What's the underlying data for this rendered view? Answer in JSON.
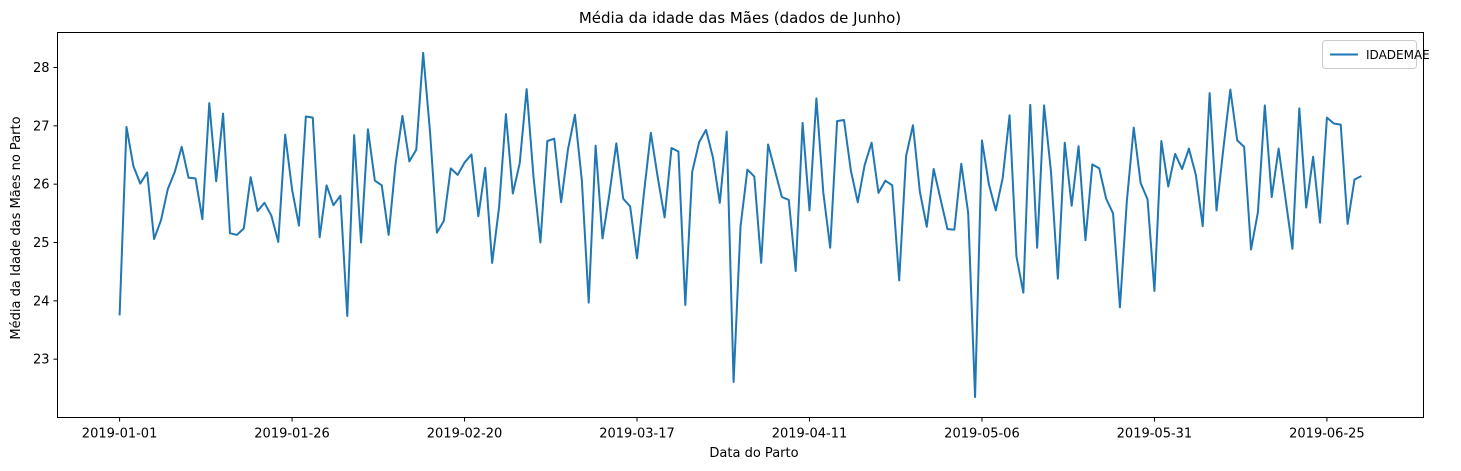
{
  "chart_data": {
    "type": "line",
    "title": "Média da idade das Mães (dados de Junho)",
    "xlabel": "Data do Parto",
    "ylabel": "Média da Idade das Mães no Parto",
    "x_start": "2019-01-01",
    "x_end": "2019-06-30",
    "xlim": [
      "2018-12-23",
      "2019-07-09"
    ],
    "ylim": [
      22.0,
      28.6
    ],
    "xticks": [
      "2019-01-01",
      "2019-01-26",
      "2019-02-20",
      "2019-03-17",
      "2019-04-11",
      "2019-05-06",
      "2019-05-31",
      "2019-06-25"
    ],
    "yticks": [
      23,
      24,
      25,
      26,
      27,
      28
    ],
    "legend": {
      "position": "upper-right",
      "entries": [
        "IDADEMAE"
      ]
    },
    "grid": false,
    "series": [
      {
        "name": "IDADEMAE",
        "color": "#1f77b4",
        "values": [
          23.75,
          26.98,
          26.31,
          26.01,
          26.2,
          25.06,
          25.38,
          25.92,
          26.21,
          26.64,
          26.11,
          26.1,
          25.4,
          27.39,
          26.05,
          27.21,
          25.16,
          25.13,
          25.24,
          26.12,
          25.54,
          25.68,
          25.46,
          25.01,
          26.85,
          25.91,
          25.29,
          27.16,
          27.14,
          25.09,
          25.98,
          25.64,
          25.8,
          23.74,
          26.84,
          25.0,
          26.94,
          26.06,
          25.98,
          25.13,
          26.35,
          27.17,
          26.39,
          26.59,
          28.25,
          26.89,
          25.17,
          25.37,
          26.27,
          26.16,
          26.37,
          26.51,
          25.45,
          26.28,
          24.65,
          25.6,
          27.2,
          25.84,
          26.36,
          27.63,
          26.12,
          25.0,
          26.74,
          26.78,
          25.69,
          26.6,
          27.19,
          26.07,
          23.97,
          26.66,
          25.07,
          25.83,
          26.7,
          25.75,
          25.62,
          24.73,
          25.84,
          26.88,
          26.12,
          25.43,
          26.62,
          26.56,
          23.93,
          26.21,
          26.72,
          26.93,
          26.46,
          25.68,
          26.9,
          22.61,
          25.27,
          26.25,
          26.13,
          24.65,
          26.68,
          26.23,
          25.78,
          25.73,
          24.51,
          27.05,
          25.55,
          27.47,
          25.86,
          24.91,
          27.08,
          27.1,
          26.23,
          25.69,
          26.33,
          26.71,
          25.85,
          26.06,
          25.98,
          24.35,
          26.48,
          27.01,
          25.87,
          25.27,
          26.26,
          25.74,
          25.23,
          25.22,
          26.35,
          25.51,
          22.35,
          26.75,
          26.0,
          25.55,
          26.1,
          27.18,
          24.76,
          24.14,
          27.36,
          24.91,
          27.35,
          26.22,
          24.38,
          26.71,
          25.63,
          26.65,
          25.04,
          26.34,
          26.27,
          25.75,
          25.5,
          23.89,
          25.71,
          26.97,
          26.02,
          25.74,
          24.17,
          26.74,
          25.96,
          26.52,
          26.26,
          26.61,
          26.16,
          25.28,
          27.56,
          25.55,
          26.62,
          27.62,
          26.75,
          26.64,
          24.88,
          25.52,
          27.35,
          25.78,
          26.61,
          25.75,
          24.89,
          27.3,
          25.6,
          26.47,
          25.34,
          27.14,
          27.04,
          27.02,
          25.32,
          26.08,
          26.14
        ]
      }
    ]
  }
}
